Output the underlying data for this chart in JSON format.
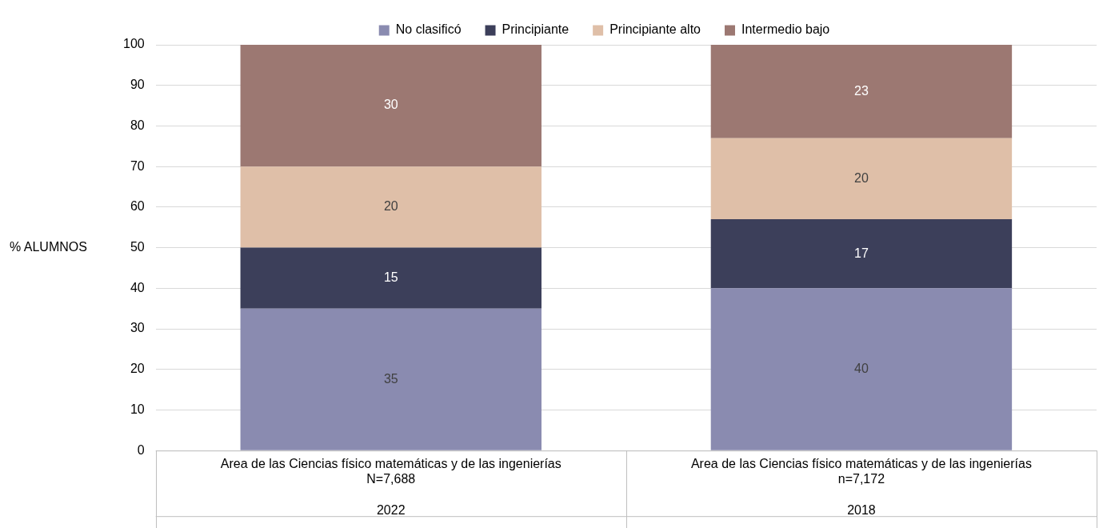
{
  "chart_data": {
    "type": "bar",
    "stacked": true,
    "ylabel": "% ALUMNOS",
    "categories": [
      "Area de las Ciencias físico matemáticas y de las ingenierías\nN=7,688\n2022",
      "Area de las Ciencias físico matemáticas y de las ingenierías\nn=7,172\n2018"
    ],
    "series": [
      {
        "name": "No clasificó",
        "color": "#8a8bb0",
        "values": [
          35,
          40
        ]
      },
      {
        "name": "Principiante",
        "color": "#3c3f5a",
        "values": [
          15,
          17
        ]
      },
      {
        "name": "Principiante alto",
        "color": "#dfbfa8",
        "values": [
          20,
          20
        ]
      },
      {
        "name": "Intermedio bajo",
        "color": "#9c7872",
        "values": [
          30,
          23
        ]
      }
    ],
    "ylim": [
      0,
      100
    ],
    "yticks": [
      0,
      10,
      20,
      30,
      40,
      50,
      60,
      70,
      80,
      90,
      100
    ],
    "grid": "y",
    "legend": "top",
    "data_labels": true
  }
}
